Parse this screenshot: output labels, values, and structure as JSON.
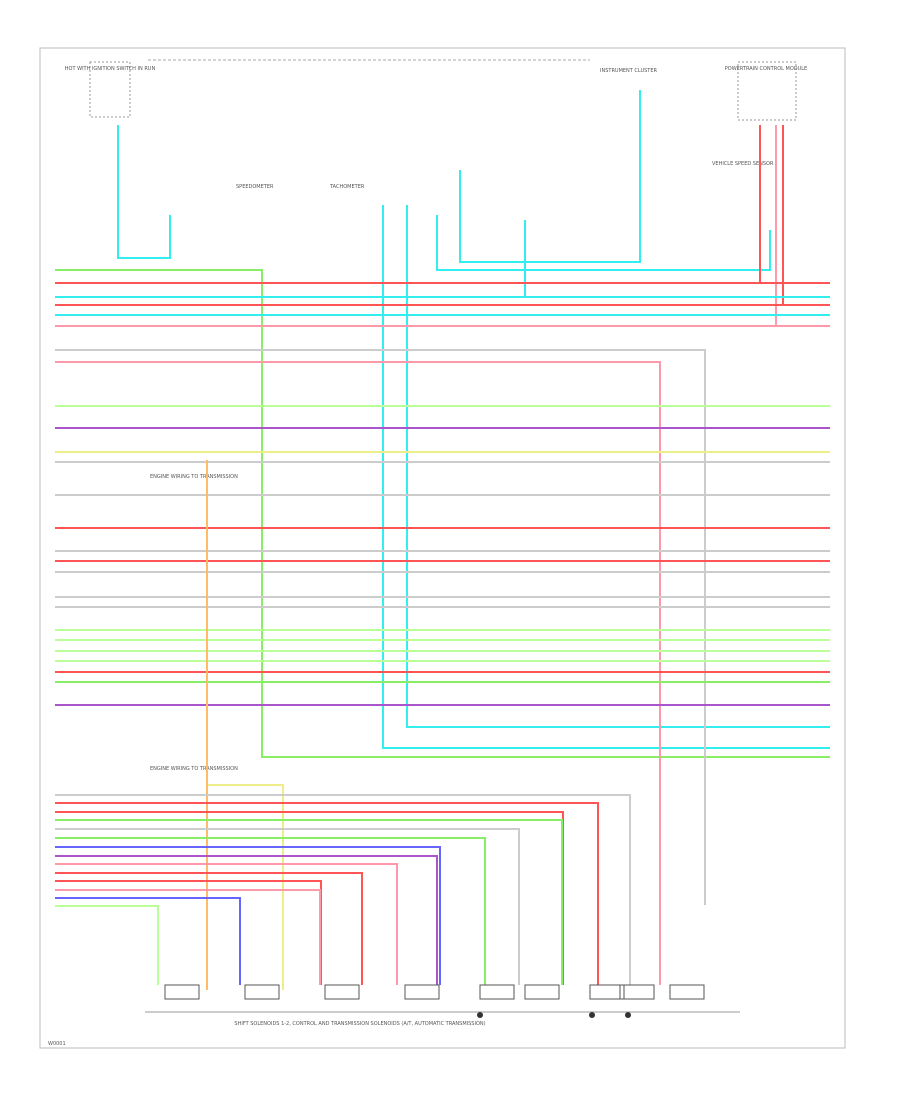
{
  "diagram": {
    "top_labels": {
      "left_connector": "HOT WITH IGNITION SWITCH IN RUN",
      "cluster": "INSTRUMENT CLUSTER",
      "right_connector": "POWERTRAIN CONTROL MODULE",
      "speedometer": "SPEEDOMETER",
      "tachometer": "TACHOMETER",
      "sensor": "VEHICLE SPEED SENSOR"
    },
    "mid_labels": {
      "splice_upper": "ENGINE WIRING TO TRANSMISSION",
      "splice_lower": "ENGINE WIRING TO TRANSMISSION"
    },
    "caption": "SHIFT SOLENOIDS 1-2, CONTROL AND TRANSMISSION SOLENOIDS (A/T, AUTOMATIC TRANSMISSION)",
    "footer": "W0001"
  }
}
